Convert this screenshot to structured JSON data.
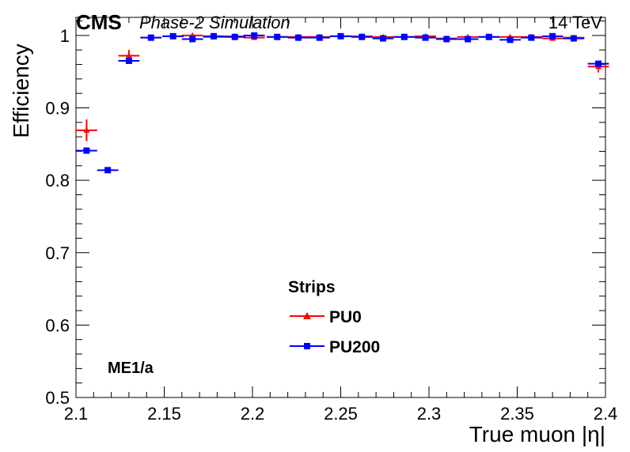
{
  "header": {
    "experiment": "CMS",
    "status": "Phase-2 Simulation",
    "energy": "14 TeV"
  },
  "chart_data": {
    "type": "scatter",
    "title": "",
    "xlabel": "True muon |η|",
    "ylabel": "Efficiency",
    "xlim": [
      2.1,
      2.4
    ],
    "ylim": [
      0.5,
      1.025
    ],
    "xticks": [
      "2.1",
      "2.15",
      "2.2",
      "2.25",
      "2.3",
      "2.35",
      "2.4"
    ],
    "yticks": [
      "0.5",
      "0.6",
      "0.7",
      "0.8",
      "0.9",
      "1"
    ],
    "grid": false,
    "annotation": "ME1/a",
    "legend": {
      "title": "Strips",
      "placement": "bottom-center",
      "entries": [
        "PU0",
        "PU200"
      ]
    },
    "series": [
      {
        "name": "PU0",
        "color": "#ff0000",
        "marker": "triangle",
        "x": [
          2.106,
          2.13,
          2.1425,
          2.155,
          2.166,
          2.178,
          2.19,
          2.201,
          2.214,
          2.226,
          2.238,
          2.25,
          2.262,
          2.274,
          2.286,
          2.298,
          2.31,
          2.322,
          2.334,
          2.346,
          2.358,
          2.37,
          2.382,
          2.396
        ],
        "y": [
          0.869,
          0.972,
          0.997,
          0.999,
          1.0,
          0.998,
          0.999,
          0.997,
          0.998,
          0.998,
          0.998,
          0.999,
          0.999,
          0.998,
          0.998,
          0.999,
          0.996,
          0.998,
          0.998,
          0.998,
          0.998,
          0.996,
          0.997,
          0.957
        ],
        "yerr": [
          0.015,
          0.008,
          0.002,
          0.002,
          0.002,
          0.002,
          0.002,
          0.002,
          0.002,
          0.002,
          0.002,
          0.002,
          0.002,
          0.002,
          0.002,
          0.002,
          0.002,
          0.002,
          0.002,
          0.002,
          0.002,
          0.002,
          0.002,
          0.008
        ]
      },
      {
        "name": "PU200",
        "color": "#0000ff",
        "marker": "square",
        "x": [
          2.106,
          2.118,
          2.13,
          2.1425,
          2.155,
          2.166,
          2.178,
          2.19,
          2.201,
          2.214,
          2.226,
          2.238,
          2.25,
          2.262,
          2.274,
          2.286,
          2.298,
          2.31,
          2.322,
          2.334,
          2.346,
          2.358,
          2.37,
          2.382,
          2.396
        ],
        "y": [
          0.841,
          0.814,
          0.965,
          0.997,
          0.999,
          0.995,
          0.999,
          0.998,
          1.0,
          0.998,
          0.997,
          0.997,
          0.999,
          0.998,
          0.996,
          0.998,
          0.997,
          0.995,
          0.995,
          0.998,
          0.994,
          0.997,
          0.999,
          0.996,
          0.961
        ]
      }
    ]
  }
}
